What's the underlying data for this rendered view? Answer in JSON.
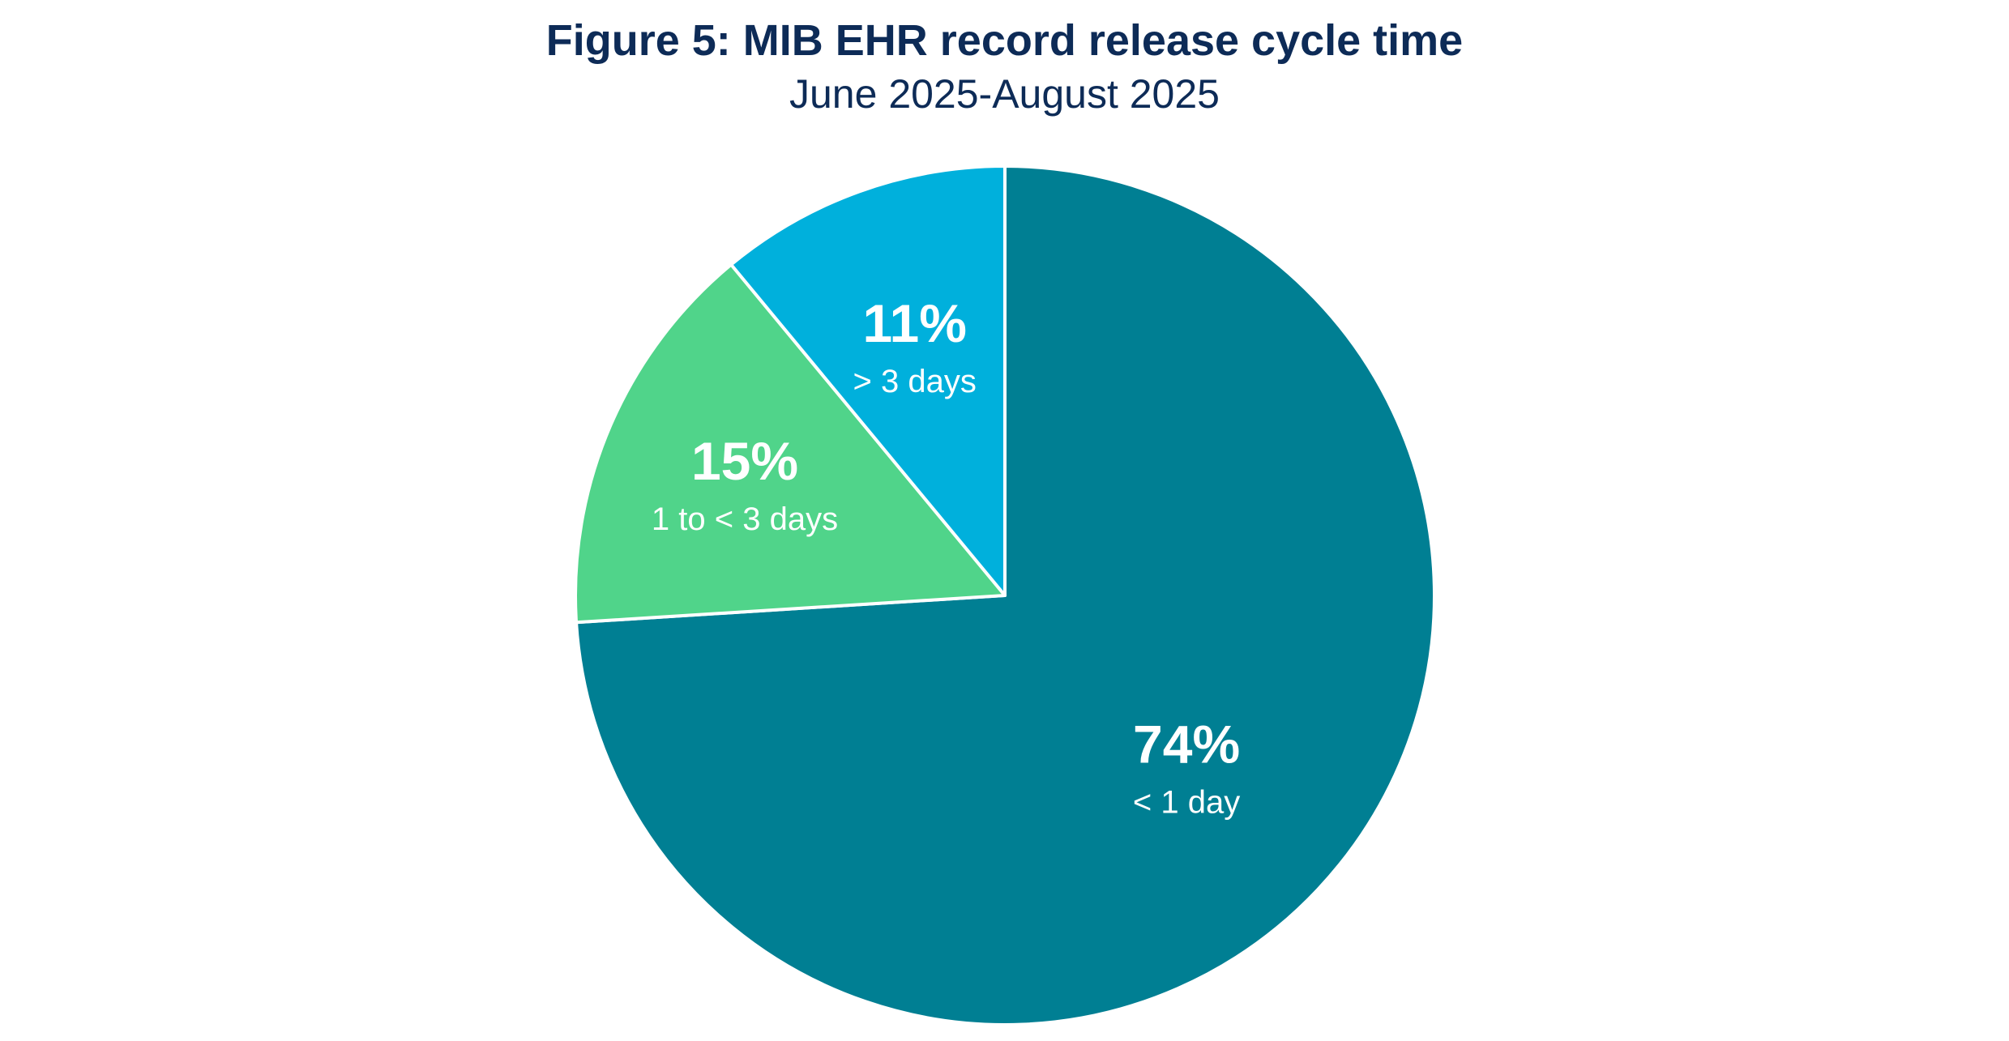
{
  "chart_data": {
    "type": "pie",
    "title": "Figure 5: MIB EHR record release cycle time",
    "subtitle": "June 2025-August 2025",
    "slices": [
      {
        "label": "< 1 day",
        "value": 74,
        "value_label": "74%",
        "color": "#007f93"
      },
      {
        "label": "1 to < 3 days",
        "value": 15,
        "value_label": "15%",
        "color": "#50d48a"
      },
      {
        "label": "> 3 days",
        "value": 11,
        "value_label": "11%",
        "color": "#00b0dc"
      }
    ],
    "start": "12 o'clock",
    "direction": "clockwise",
    "legend": "none (labels inside slices)"
  }
}
